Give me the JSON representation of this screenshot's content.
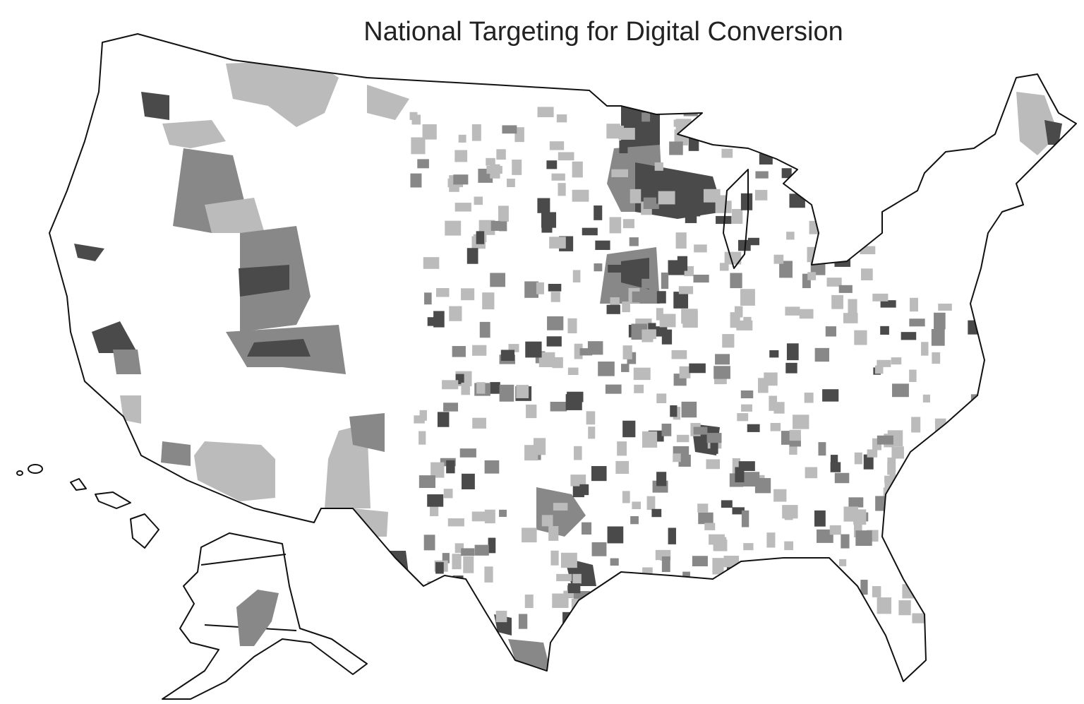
{
  "title": "National Targeting for Digital Conversion"
}
